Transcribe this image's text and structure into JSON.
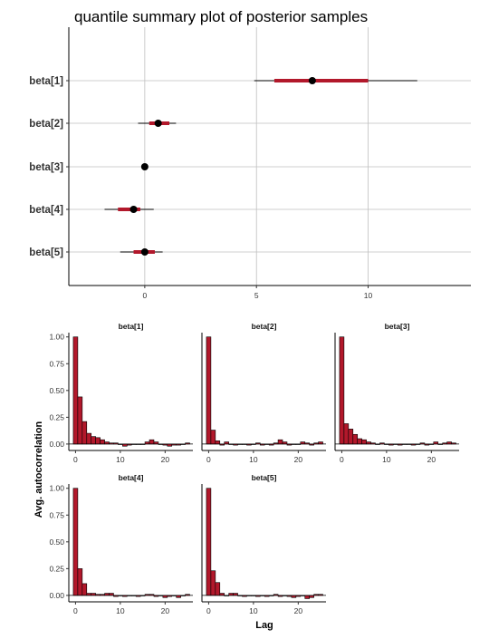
{
  "chart_data": [
    {
      "type": "interval",
      "title": "quantile summary plot of posterior samples",
      "categories": [
        "beta[1]",
        "beta[2]",
        "beta[3]",
        "beta[4]",
        "beta[5]"
      ],
      "x_ticks": [
        0,
        5,
        10
      ],
      "xlim": [
        -3.4,
        14.6
      ],
      "intervals": [
        {
          "name": "beta[1]",
          "median": 7.5,
          "inner": [
            5.8,
            10.0
          ],
          "outer": [
            4.9,
            12.2
          ]
        },
        {
          "name": "beta[2]",
          "median": 0.6,
          "inner": [
            0.2,
            1.1
          ],
          "outer": [
            -0.3,
            1.4
          ]
        },
        {
          "name": "beta[3]",
          "median": 0.0,
          "inner": [
            -0.1,
            0.05
          ],
          "outer": [
            -0.15,
            0.1
          ]
        },
        {
          "name": "beta[4]",
          "median": -0.5,
          "inner": [
            -1.2,
            -0.2
          ],
          "outer": [
            -1.8,
            0.4
          ]
        },
        {
          "name": "beta[5]",
          "median": 0.0,
          "inner": [
            -0.5,
            0.45
          ],
          "outer": [
            -1.1,
            0.8
          ]
        }
      ],
      "colors": {
        "interval": "#b2182b",
        "point": "#000000",
        "grid": "#bfbfbf"
      }
    },
    {
      "type": "bar",
      "ylabel": "Avg. autocorrelation",
      "xlabel": "Lag",
      "y_ticks": [
        "1.00",
        "0.75",
        "0.50",
        "0.25",
        "0.00"
      ],
      "y_tick_values": [
        1.0,
        0.75,
        0.5,
        0.25,
        0.0
      ],
      "x_ticks": [
        0,
        10,
        20
      ],
      "ylim": [
        -0.06,
        1.04
      ],
      "xlim": [
        -1.5,
        26.2
      ],
      "lags": [
        0,
        1,
        2,
        3,
        4,
        5,
        6,
        7,
        8,
        9,
        10,
        11,
        12,
        13,
        14,
        15,
        16,
        17,
        18,
        19,
        20,
        21,
        22,
        23,
        24,
        25
      ],
      "panels": [
        {
          "name": "beta[1]",
          "values": [
            1.0,
            0.44,
            0.21,
            0.1,
            0.07,
            0.06,
            0.04,
            0.02,
            0.01,
            0.01,
            0.0,
            -0.02,
            -0.01,
            0.0,
            0.0,
            0.0,
            0.02,
            0.04,
            0.02,
            0.0,
            -0.01,
            -0.02,
            -0.01,
            -0.01,
            0.0,
            0.01
          ]
        },
        {
          "name": "beta[2]",
          "values": [
            1.0,
            0.13,
            0.03,
            -0.01,
            0.02,
            0.0,
            -0.01,
            0.0,
            0.0,
            -0.01,
            0.0,
            0.01,
            -0.01,
            0.0,
            -0.01,
            0.01,
            0.04,
            0.02,
            -0.01,
            0.0,
            0.0,
            0.02,
            0.01,
            -0.01,
            0.01,
            0.02
          ]
        },
        {
          "name": "beta[3]",
          "values": [
            1.0,
            0.19,
            0.14,
            0.09,
            0.05,
            0.04,
            0.02,
            0.01,
            0.0,
            0.01,
            0.0,
            -0.01,
            0.0,
            -0.01,
            0.0,
            0.0,
            -0.01,
            0.0,
            0.01,
            -0.01,
            0.0,
            0.02,
            0.0,
            0.01,
            0.02,
            0.01
          ]
        },
        {
          "name": "beta[4]",
          "values": [
            1.0,
            0.25,
            0.11,
            0.02,
            0.02,
            0.01,
            0.01,
            0.02,
            0.02,
            -0.01,
            0.0,
            -0.01,
            0.0,
            0.0,
            -0.01,
            0.0,
            0.01,
            0.01,
            -0.01,
            0.0,
            -0.02,
            -0.01,
            0.0,
            -0.02,
            0.0,
            0.01
          ]
        },
        {
          "name": "beta[5]",
          "values": [
            1.0,
            0.23,
            0.12,
            0.02,
            0.0,
            0.02,
            0.02,
            0.0,
            -0.01,
            0.0,
            0.0,
            -0.01,
            0.0,
            -0.01,
            0.0,
            0.01,
            -0.01,
            0.0,
            -0.01,
            -0.02,
            -0.01,
            0.0,
            -0.03,
            -0.02,
            0.01,
            0.01
          ]
        }
      ],
      "colors": {
        "bar": "#b2182b",
        "bar_edge": "#000000",
        "zero_line": "#000000"
      }
    }
  ]
}
